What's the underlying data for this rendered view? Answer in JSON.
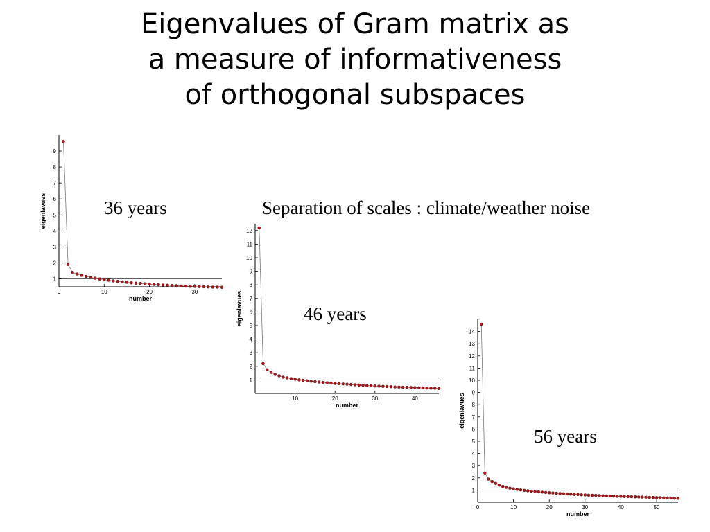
{
  "slide": {
    "title_lines": [
      "Eigenvalues of Gram matrix as",
      "a measure of informativeness",
      "of orthogonal subspaces"
    ],
    "separation_note": "Separation of scales : climate/weather noise"
  },
  "colors": {
    "marker": "#b3141a",
    "line": "#777777",
    "axis": "#000000",
    "reference_line": "#000000"
  },
  "chart_data": [
    {
      "type": "scatter",
      "caption": "36 years",
      "xlabel": "number",
      "ylabel": "eigenlavues",
      "xlim": [
        0,
        36
      ],
      "ylim": [
        0.5,
        10
      ],
      "xticks": [
        0,
        10,
        20,
        30
      ],
      "yticks": [
        1,
        2,
        3,
        4,
        5,
        6,
        7,
        8,
        9
      ],
      "reference_y": 1,
      "x": [
        1,
        2,
        3,
        4,
        5,
        6,
        7,
        8,
        9,
        10,
        11,
        12,
        13,
        14,
        15,
        16,
        17,
        18,
        19,
        20,
        21,
        22,
        23,
        24,
        25,
        26,
        27,
        28,
        29,
        30,
        31,
        32,
        33,
        34,
        35,
        36
      ],
      "values": [
        9.6,
        1.9,
        1.4,
        1.3,
        1.22,
        1.15,
        1.09,
        1.04,
        0.99,
        0.95,
        0.91,
        0.87,
        0.84,
        0.81,
        0.78,
        0.75,
        0.73,
        0.71,
        0.69,
        0.67,
        0.65,
        0.63,
        0.61,
        0.6,
        0.58,
        0.57,
        0.55,
        0.54,
        0.53,
        0.52,
        0.51,
        0.5,
        0.49,
        0.48,
        0.48,
        0.47
      ]
    },
    {
      "type": "scatter",
      "caption": "46 years",
      "xlabel": "number",
      "ylabel": "eigenlavues",
      "xlim": [
        0,
        46
      ],
      "ylim": [
        0,
        12.5
      ],
      "xticks": [
        10,
        20,
        30,
        40
      ],
      "yticks": [
        1,
        2,
        3,
        4,
        5,
        6,
        7,
        8,
        9,
        10,
        11,
        12
      ],
      "reference_y": 1,
      "x": [
        1,
        2,
        3,
        4,
        5,
        6,
        7,
        8,
        9,
        10,
        11,
        12,
        13,
        14,
        15,
        16,
        17,
        18,
        19,
        20,
        21,
        22,
        23,
        24,
        25,
        26,
        27,
        28,
        29,
        30,
        31,
        32,
        33,
        34,
        35,
        36,
        37,
        38,
        39,
        40,
        41,
        42,
        43,
        44,
        45,
        46
      ],
      "values": [
        12.2,
        2.2,
        1.75,
        1.55,
        1.4,
        1.3,
        1.2,
        1.15,
        1.1,
        1.05,
        1.0,
        0.97,
        0.93,
        0.9,
        0.87,
        0.84,
        0.81,
        0.79,
        0.76,
        0.74,
        0.72,
        0.7,
        0.68,
        0.66,
        0.64,
        0.62,
        0.6,
        0.58,
        0.57,
        0.55,
        0.54,
        0.52,
        0.51,
        0.5,
        0.48,
        0.47,
        0.46,
        0.45,
        0.44,
        0.43,
        0.42,
        0.41,
        0.4,
        0.39,
        0.38,
        0.37
      ]
    },
    {
      "type": "scatter",
      "caption": "56 years",
      "xlabel": "number",
      "ylabel": "eigenlavues",
      "xlim": [
        0,
        56
      ],
      "ylim": [
        0,
        15
      ],
      "xticks": [
        0,
        10,
        20,
        30,
        40,
        50
      ],
      "yticks": [
        1,
        2,
        3,
        4,
        5,
        6,
        7,
        8,
        9,
        10,
        11,
        12,
        13,
        14
      ],
      "reference_y": 1,
      "x": [
        1,
        2,
        3,
        4,
        5,
        6,
        7,
        8,
        9,
        10,
        11,
        12,
        13,
        14,
        15,
        16,
        17,
        18,
        19,
        20,
        21,
        22,
        23,
        24,
        25,
        26,
        27,
        28,
        29,
        30,
        31,
        32,
        33,
        34,
        35,
        36,
        37,
        38,
        39,
        40,
        41,
        42,
        43,
        44,
        45,
        46,
        47,
        48,
        49,
        50,
        51,
        52,
        53,
        54,
        55,
        56
      ],
      "values": [
        14.6,
        2.4,
        1.9,
        1.7,
        1.55,
        1.4,
        1.3,
        1.22,
        1.15,
        1.1,
        1.05,
        1.01,
        0.97,
        0.94,
        0.91,
        0.88,
        0.85,
        0.83,
        0.8,
        0.78,
        0.76,
        0.74,
        0.72,
        0.7,
        0.68,
        0.66,
        0.64,
        0.63,
        0.61,
        0.6,
        0.58,
        0.57,
        0.56,
        0.54,
        0.53,
        0.52,
        0.51,
        0.5,
        0.49,
        0.48,
        0.47,
        0.46,
        0.45,
        0.44,
        0.43,
        0.42,
        0.41,
        0.4,
        0.39,
        0.38,
        0.37,
        0.36,
        0.35,
        0.34,
        0.33,
        0.32
      ]
    }
  ]
}
